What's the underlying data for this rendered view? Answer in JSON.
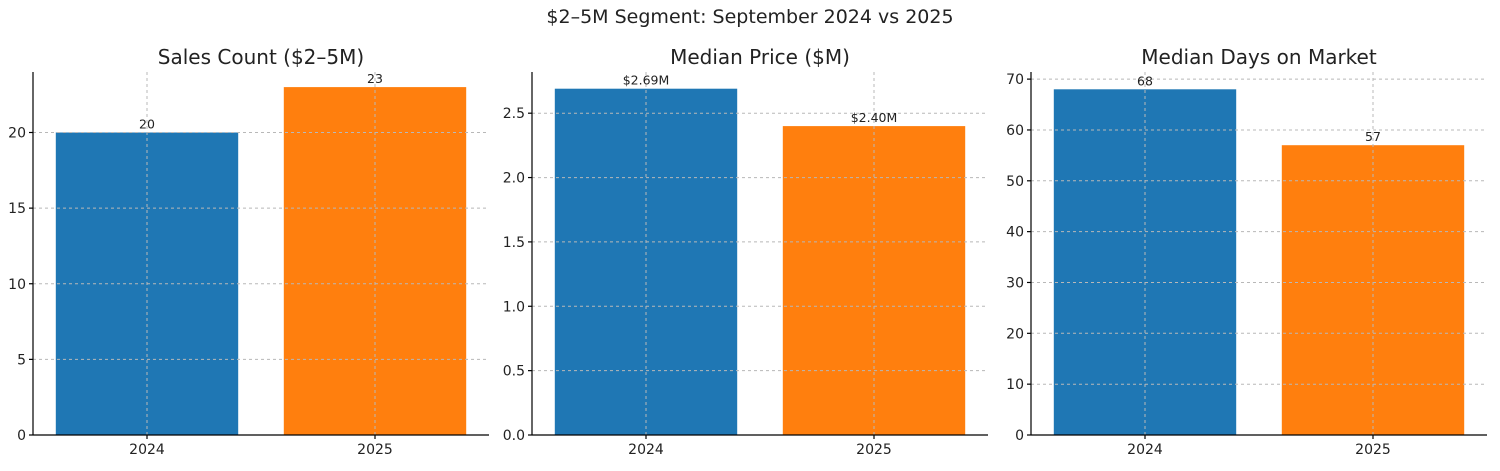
{
  "title": "$2–5M Segment: September 2024 vs 2025",
  "colors": {
    "2024": "#1f77b4",
    "2025": "#ff7f0e"
  },
  "chart_data": [
    {
      "type": "bar",
      "title": "Sales Count ($2–5M)",
      "categories": [
        "2024",
        "2025"
      ],
      "values": [
        20,
        23
      ],
      "data_labels": [
        "20",
        "23"
      ],
      "ylim": [
        0,
        24
      ],
      "yticks": [
        0,
        5,
        10,
        15,
        20
      ],
      "ytick_labels": [
        "0",
        "5",
        "10",
        "15",
        "20"
      ],
      "grid": true
    },
    {
      "type": "bar",
      "title": "Median Price ($M)",
      "categories": [
        "2024",
        "2025"
      ],
      "values": [
        2.69,
        2.4
      ],
      "data_labels": [
        "$2.69M",
        "$2.40M"
      ],
      "ylim": [
        0,
        2.82
      ],
      "yticks": [
        0,
        0.5,
        1.0,
        1.5,
        2.0,
        2.5
      ],
      "ytick_labels": [
        "0.0",
        "0.5",
        "1.0",
        "1.5",
        "2.0",
        "2.5"
      ],
      "grid": true
    },
    {
      "type": "bar",
      "title": "Median Days on Market",
      "categories": [
        "2024",
        "2025"
      ],
      "values": [
        68,
        57
      ],
      "data_labels": [
        "68",
        "57"
      ],
      "ylim": [
        0,
        71.4
      ],
      "yticks": [
        0,
        10,
        20,
        30,
        40,
        50,
        60,
        70
      ],
      "ytick_labels": [
        "0",
        "10",
        "20",
        "30",
        "40",
        "50",
        "60",
        "70"
      ],
      "grid": true
    }
  ]
}
